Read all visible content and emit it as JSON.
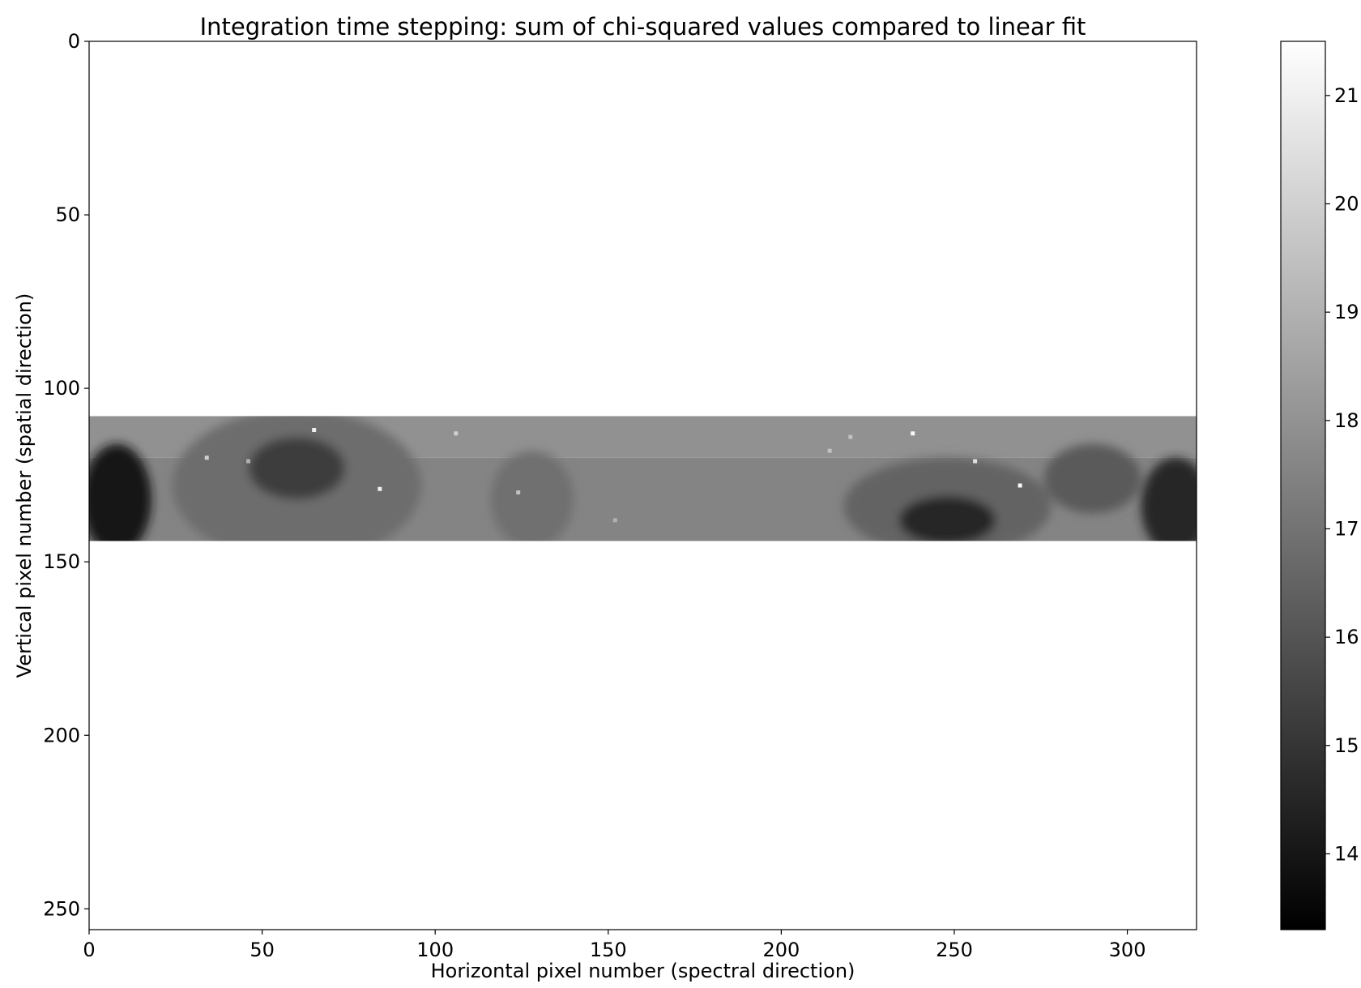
{
  "chart_data": {
    "type": "heatmap",
    "title": "Integration time stepping: sum of chi-squared values compared to linear fit",
    "xlabel": "Horizontal pixel number (spectral direction)",
    "ylabel": "Vertical pixel number (spatial direction)",
    "xlim": [
      0,
      320
    ],
    "ylim": [
      256,
      0
    ],
    "x_ticks": [
      0,
      50,
      100,
      150,
      200,
      250,
      300
    ],
    "y_ticks": [
      0,
      50,
      100,
      150,
      200,
      250
    ],
    "colormap": "gray",
    "color_range": [
      13.3,
      21.5
    ],
    "colorbar_ticks": [
      14,
      15,
      16,
      17,
      18,
      19,
      20,
      21
    ],
    "grid": false,
    "data_rows": [
      108,
      144
    ],
    "band_row_split": 120,
    "background_outside_rows": "no data (white)",
    "features": [
      {
        "x": 60,
        "y": 123,
        "rx": 14,
        "ry": 9,
        "value": 15.3
      },
      {
        "x": 60,
        "y": 128,
        "rx": 36,
        "ry": 22,
        "value": 16.8
      },
      {
        "x": 248,
        "y": 138,
        "rx": 14,
        "ry": 7,
        "value": 14.6
      },
      {
        "x": 248,
        "y": 134,
        "rx": 30,
        "ry": 14,
        "value": 16.5
      },
      {
        "x": 8,
        "y": 132,
        "rx": 10,
        "ry": 16,
        "value": 14.1
      },
      {
        "x": 314,
        "y": 134,
        "rx": 10,
        "ry": 14,
        "value": 14.5
      },
      {
        "x": 128,
        "y": 132,
        "rx": 12,
        "ry": 14,
        "value": 16.9
      },
      {
        "x": 290,
        "y": 126,
        "rx": 14,
        "ry": 10,
        "value": 16.2
      }
    ],
    "hot_pixels": [
      {
        "x": 65,
        "y": 112,
        "value": 21
      },
      {
        "x": 34,
        "y": 120,
        "value": 20
      },
      {
        "x": 84,
        "y": 129,
        "value": 21
      },
      {
        "x": 106,
        "y": 113,
        "value": 20
      },
      {
        "x": 124,
        "y": 130,
        "value": 19.5
      },
      {
        "x": 238,
        "y": 113,
        "value": 21.3
      },
      {
        "x": 269,
        "y": 128,
        "value": 21.3
      },
      {
        "x": 256,
        "y": 121,
        "value": 20.5
      },
      {
        "x": 214,
        "y": 118,
        "value": 19.5
      },
      {
        "x": 220,
        "y": 114,
        "value": 19.5
      },
      {
        "x": 46,
        "y": 121,
        "value": 19
      },
      {
        "x": 152,
        "y": 138,
        "value": 19
      }
    ]
  },
  "icons": {
    "colorbar": "grayscale-gradient"
  }
}
